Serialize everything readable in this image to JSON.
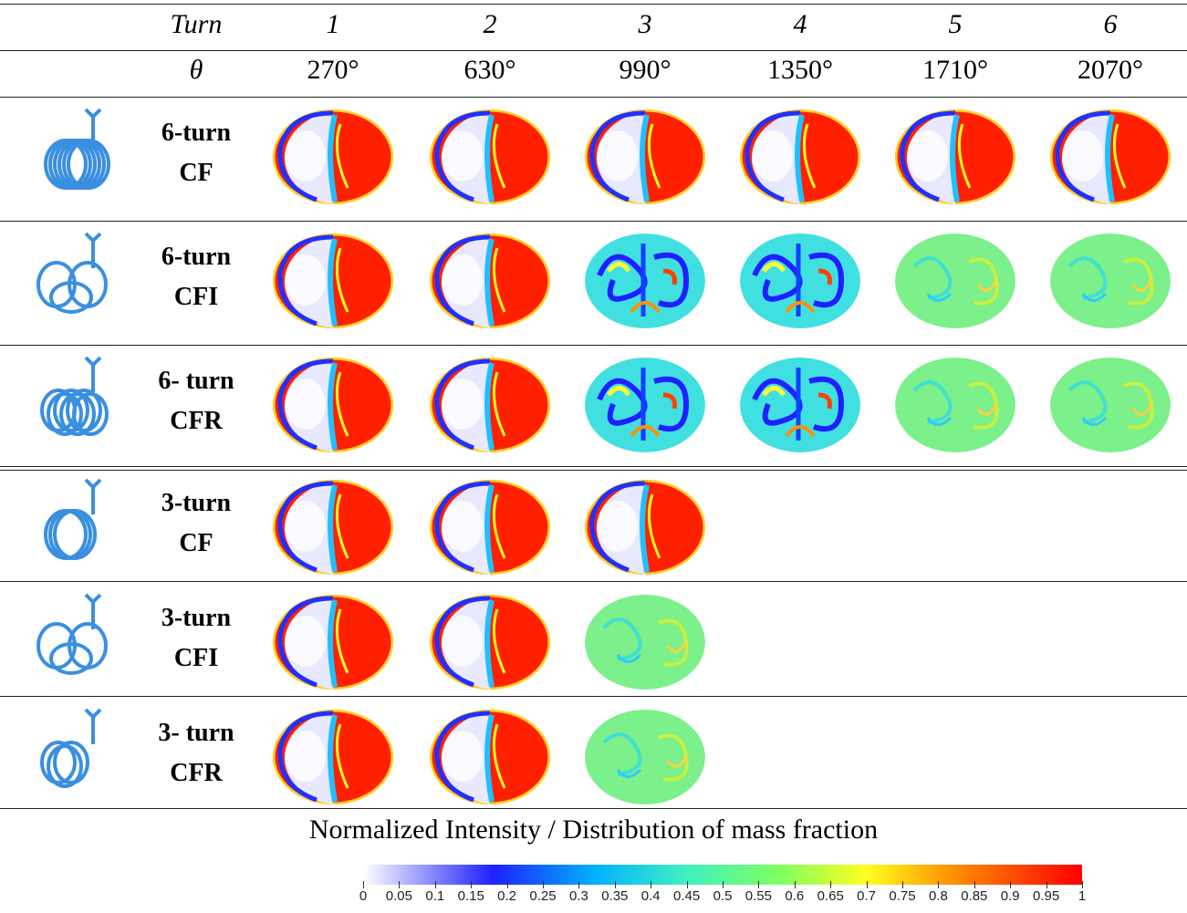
{
  "header": {
    "turn_label": "Turn",
    "theta_label": "θ",
    "turns": [
      "1",
      "2",
      "3",
      "4",
      "5",
      "6"
    ],
    "angles": [
      "270°",
      "630°",
      "990°",
      "1350°",
      "1710°",
      "2070°"
    ]
  },
  "rows": [
    {
      "line1": "6-turn",
      "line2": "CF",
      "count": 6
    },
    {
      "line1": "6-turn",
      "line2": "CFI",
      "count": 6
    },
    {
      "line1": "6- turn",
      "line2": "CFR",
      "count": 6
    },
    {
      "line1": "3-turn",
      "line2": "CF",
      "count": 3
    },
    {
      "line1": "3-turn",
      "line2": "CFI",
      "count": 3
    },
    {
      "line1": "3- turn",
      "line2": "CFR",
      "count": 3
    }
  ],
  "caption": "Normalized Intensity / Distribution of mass fraction",
  "colorbar_ticks": [
    "0",
    "0.05",
    "0.1",
    "0.15",
    "0.2",
    "0.25",
    "0.3",
    "0.35",
    "0.4",
    "0.45",
    "0.5",
    "0.55",
    "0.6",
    "0.65",
    "0.7",
    "0.75",
    "0.8",
    "0.85",
    "0.9",
    "0.95",
    "1"
  ],
  "colors": {
    "low": "#ffffff",
    "mid_low": "#2020ff",
    "mid": "#40f0c0",
    "mid_high": "#ffff20",
    "high": "#ff0000"
  }
}
